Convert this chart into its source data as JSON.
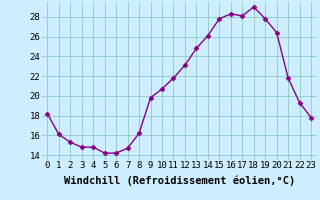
{
  "x": [
    0,
    1,
    2,
    3,
    4,
    5,
    6,
    7,
    8,
    9,
    10,
    11,
    12,
    13,
    14,
    15,
    16,
    17,
    18,
    19,
    20,
    21,
    22,
    23
  ],
  "y": [
    18.2,
    16.1,
    15.3,
    14.8,
    14.8,
    14.2,
    14.2,
    14.7,
    16.2,
    19.8,
    20.7,
    21.8,
    23.1,
    24.8,
    26.1,
    27.8,
    28.3,
    28.1,
    29.0,
    27.8,
    26.4,
    21.8,
    19.3,
    17.8
  ],
  "line_color": "#880088",
  "marker": "D",
  "marker_size": 2.5,
  "bg_color": "#cceeff",
  "grid_color": "#99cccc",
  "xlabel": "Windchill (Refroidissement éolien,°C)",
  "xlabel_fontsize": 7.5,
  "tick_fontsize": 6.5,
  "ylim": [
    13.5,
    29.5
  ],
  "yticks": [
    14,
    16,
    18,
    20,
    22,
    24,
    26,
    28
  ],
  "xlim": [
    -0.5,
    23.5
  ],
  "xticks": [
    0,
    1,
    2,
    3,
    4,
    5,
    6,
    7,
    8,
    9,
    10,
    11,
    12,
    13,
    14,
    15,
    16,
    17,
    18,
    19,
    20,
    21,
    22,
    23
  ]
}
